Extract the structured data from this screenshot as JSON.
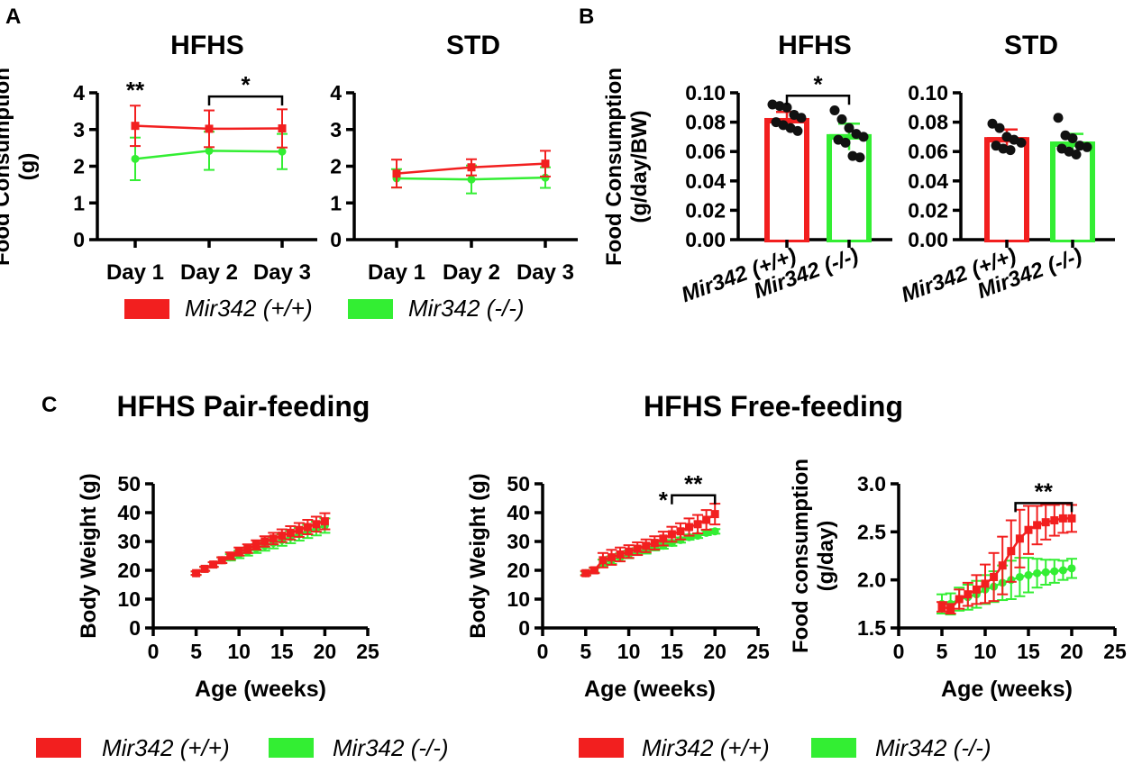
{
  "colors": {
    "wt": "#f21f1f",
    "ko": "#33ee33",
    "axis": "#000000",
    "dot": "#111111"
  },
  "panel_labels": {
    "a": "A",
    "b": "B",
    "c": "C"
  },
  "section_titles": {
    "pair": "HFHS Pair-feeding",
    "free": "HFHS Free-feeding"
  },
  "legend": {
    "wt": "Mir342 (+/+)",
    "ko": "Mir342 (-/-)"
  },
  "chart_data": [
    {
      "id": "a-hfhs",
      "type": "line",
      "title": "HFHS",
      "ylabel": "Food Consumption (g)",
      "ylabel_lines": [
        "Food Consumption",
        "(g)"
      ],
      "categories": [
        "Day 1",
        "Day 2",
        "Day 3"
      ],
      "ylim": [
        0,
        4
      ],
      "yticks": [
        0,
        1,
        2,
        3,
        4
      ],
      "series": [
        {
          "name": "Mir342 (+/+)",
          "color": "wt",
          "values": [
            3.1,
            3.02,
            3.03
          ],
          "errors": [
            0.55,
            0.5,
            0.52
          ]
        },
        {
          "name": "Mir342 (-/-)",
          "color": "ko",
          "values": [
            2.2,
            2.42,
            2.4
          ],
          "errors": [
            0.58,
            0.52,
            0.48
          ]
        }
      ],
      "annotations": [
        {
          "text": "**",
          "x": 0,
          "y": 4.0
        },
        {
          "text": "*",
          "bracket": [
            1,
            2
          ],
          "y": 3.9
        }
      ]
    },
    {
      "id": "a-std",
      "type": "line",
      "title": "STD",
      "categories": [
        "Day 1",
        "Day 2",
        "Day 3"
      ],
      "ylim": [
        0,
        4
      ],
      "yticks": [
        0,
        1,
        2,
        3,
        4
      ],
      "series": [
        {
          "name": "Mir342 (+/+)",
          "color": "wt",
          "values": [
            1.8,
            1.97,
            2.07
          ],
          "errors": [
            0.38,
            0.22,
            0.35
          ]
        },
        {
          "name": "Mir342 (-/-)",
          "color": "ko",
          "values": [
            1.67,
            1.64,
            1.69
          ],
          "errors": [
            0.25,
            0.38,
            0.28
          ]
        }
      ]
    },
    {
      "id": "b-hfhs",
      "type": "bar",
      "title": "HFHS",
      "ylabel": "Food Consumption (g/day/BW)",
      "ylabel_lines": [
        "Food Consumption",
        "(g/day/BW)"
      ],
      "categories": [
        "Mir342 (+/+)",
        "Mir342 (-/-)"
      ],
      "ylim": [
        0,
        0.1
      ],
      "yticks": [
        0.0,
        0.02,
        0.04,
        0.06,
        0.08,
        0.1
      ],
      "ytick_labels": [
        "0.00",
        "0.02",
        "0.04",
        "0.06",
        "0.08",
        "0.10"
      ],
      "values": [
        0.081,
        0.07
      ],
      "errors": [
        0.006,
        0.009
      ],
      "colors": [
        "wt",
        "ko"
      ],
      "points": [
        [
          0.092,
          0.091,
          0.09,
          0.085,
          0.083,
          0.08,
          0.078,
          0.076,
          0.074
        ],
        [
          0.088,
          0.082,
          0.076,
          0.072,
          0.07,
          0.068,
          0.066,
          0.057,
          0.056
        ]
      ],
      "annotations": [
        {
          "text": "*",
          "bracket": [
            0,
            1
          ],
          "y": 0.098
        }
      ]
    },
    {
      "id": "b-std",
      "type": "bar",
      "title": "STD",
      "categories": [
        "Mir342 (+/+)",
        "Mir342 (-/-)"
      ],
      "ylim": [
        0,
        0.1
      ],
      "yticks": [
        0.0,
        0.02,
        0.04,
        0.06,
        0.08,
        0.1
      ],
      "ytick_labels": [
        "0.00",
        "0.02",
        "0.04",
        "0.06",
        "0.08",
        "0.10"
      ],
      "values": [
        0.068,
        0.065
      ],
      "errors": [
        0.007,
        0.007
      ],
      "colors": [
        "wt",
        "ko"
      ],
      "points": [
        [
          0.079,
          0.076,
          0.07,
          0.068,
          0.066,
          0.064,
          0.062,
          0.061
        ],
        [
          0.083,
          0.071,
          0.069,
          0.064,
          0.063,
          0.062,
          0.06,
          0.058
        ]
      ]
    },
    {
      "id": "c-pair-bw",
      "type": "line",
      "xlabel": "Age (weeks)",
      "ylabel": "Body Weight (g)",
      "xlim": [
        0,
        25
      ],
      "xticks": [
        0,
        5,
        10,
        15,
        20,
        25
      ],
      "ylim": [
        0,
        50
      ],
      "yticks": [
        0,
        10,
        20,
        30,
        40,
        50
      ],
      "x": [
        5,
        6,
        7,
        8,
        9,
        10,
        11,
        12,
        13,
        14,
        15,
        16,
        17,
        18,
        19,
        20
      ],
      "series": [
        {
          "name": "Mir342 (+/+)",
          "color": "wt",
          "values": [
            19,
            20.5,
            22,
            23.5,
            25,
            26.5,
            27.5,
            28.8,
            30,
            31,
            32,
            33,
            34,
            35,
            36,
            37
          ],
          "errors": [
            0.6,
            0.7,
            0.8,
            1,
            1.2,
            1.4,
            1.5,
            1.6,
            1.8,
            2,
            2.2,
            2.3,
            2.4,
            2.5,
            2.6,
            2.8
          ]
        },
        {
          "name": "Mir342 (-/-)",
          "color": "ko",
          "values": [
            19,
            20.5,
            22,
            23.5,
            24.5,
            25.5,
            26.5,
            27.5,
            28.5,
            29.5,
            30.5,
            31.5,
            32.5,
            33.5,
            34.5,
            35.5
          ],
          "errors": [
            0.6,
            0.7,
            0.8,
            1,
            1.1,
            1.3,
            1.4,
            1.5,
            1.7,
            1.9,
            2,
            2.1,
            2.2,
            2.3,
            2.4,
            2.5
          ]
        }
      ]
    },
    {
      "id": "c-free-bw",
      "type": "line",
      "xlabel": "Age (weeks)",
      "ylabel": "Body Weight (g)",
      "xlim": [
        0,
        25
      ],
      "xticks": [
        0,
        5,
        10,
        15,
        20,
        25
      ],
      "ylim": [
        0,
        50
      ],
      "yticks": [
        0,
        10,
        20,
        30,
        40,
        50
      ],
      "x": [
        5,
        6,
        7,
        8,
        9,
        10,
        11,
        12,
        13,
        14,
        15,
        16,
        17,
        18,
        19,
        20
      ],
      "series": [
        {
          "name": "Mir342 (+/+)",
          "color": "wt",
          "values": [
            19,
            20,
            23.5,
            24.5,
            25.5,
            26.5,
            27.5,
            28.5,
            29.5,
            31,
            32.5,
            33.5,
            35,
            36,
            37.5,
            39.5
          ],
          "errors": [
            0.8,
            1,
            2.5,
            2.6,
            2.4,
            2.2,
            2.2,
            2.2,
            2.3,
            2.4,
            2.6,
            2.8,
            3,
            3.2,
            3.4,
            3.6
          ]
        },
        {
          "name": "Mir342 (-/-)",
          "color": "ko",
          "values": [
            19,
            20,
            22.5,
            23.5,
            24.5,
            25.5,
            26.5,
            27,
            28,
            28.5,
            29.5,
            30.5,
            31.5,
            32,
            33,
            33.5
          ],
          "errors": [
            0.6,
            0.8,
            1.2,
            1.3,
            1.3,
            1.3,
            1.2,
            1.2,
            1.1,
            1,
            1,
            0.9,
            0.9,
            0.8,
            0.8,
            0.8
          ]
        }
      ],
      "annotations": [
        {
          "text": "*",
          "x": 14,
          "y": 43.5
        },
        {
          "text": "**",
          "bracket": [
            15,
            20
          ],
          "y": 46
        }
      ]
    },
    {
      "id": "c-free-fc",
      "type": "line",
      "xlabel": "Age (weeks)",
      "ylabel": "Food consumption (g/day)",
      "ylabel_lines": [
        "Food consumption",
        "(g/day)"
      ],
      "xlim": [
        0,
        25
      ],
      "xticks": [
        0,
        5,
        10,
        15,
        20,
        25
      ],
      "ylim": [
        1.5,
        3.0
      ],
      "yticks": [
        1.5,
        2.0,
        2.5,
        3.0
      ],
      "ytick_labels": [
        "1.5",
        "2.0",
        "2.5",
        "3.0"
      ],
      "x": [
        5,
        6,
        7,
        8,
        9,
        10,
        11,
        12,
        13,
        14,
        15,
        16,
        17,
        18,
        19,
        20
      ],
      "series": [
        {
          "name": "Mir342 (+/+)",
          "color": "wt",
          "values": [
            1.72,
            1.7,
            1.8,
            1.85,
            1.9,
            1.96,
            2.03,
            2.15,
            2.3,
            2.43,
            2.52,
            2.57,
            2.6,
            2.62,
            2.64,
            2.64
          ],
          "errors": [
            0.05,
            0.05,
            0.1,
            0.12,
            0.15,
            0.2,
            0.25,
            0.3,
            0.32,
            0.3,
            0.25,
            0.2,
            0.18,
            0.16,
            0.15,
            0.14
          ]
        },
        {
          "name": "Mir342 (-/-)",
          "color": "ko",
          "values": [
            1.75,
            1.75,
            1.8,
            1.82,
            1.85,
            1.9,
            1.93,
            1.97,
            2.0,
            2.03,
            2.05,
            2.07,
            2.08,
            2.09,
            2.1,
            2.12
          ],
          "errors": [
            0.1,
            0.11,
            0.12,
            0.13,
            0.14,
            0.15,
            0.16,
            0.18,
            0.2,
            0.2,
            0.18,
            0.15,
            0.13,
            0.12,
            0.1,
            0.1
          ]
        }
      ],
      "annotations": [
        {
          "text": "**",
          "bracket": [
            13.5,
            20
          ],
          "y": 2.8
        }
      ]
    }
  ]
}
